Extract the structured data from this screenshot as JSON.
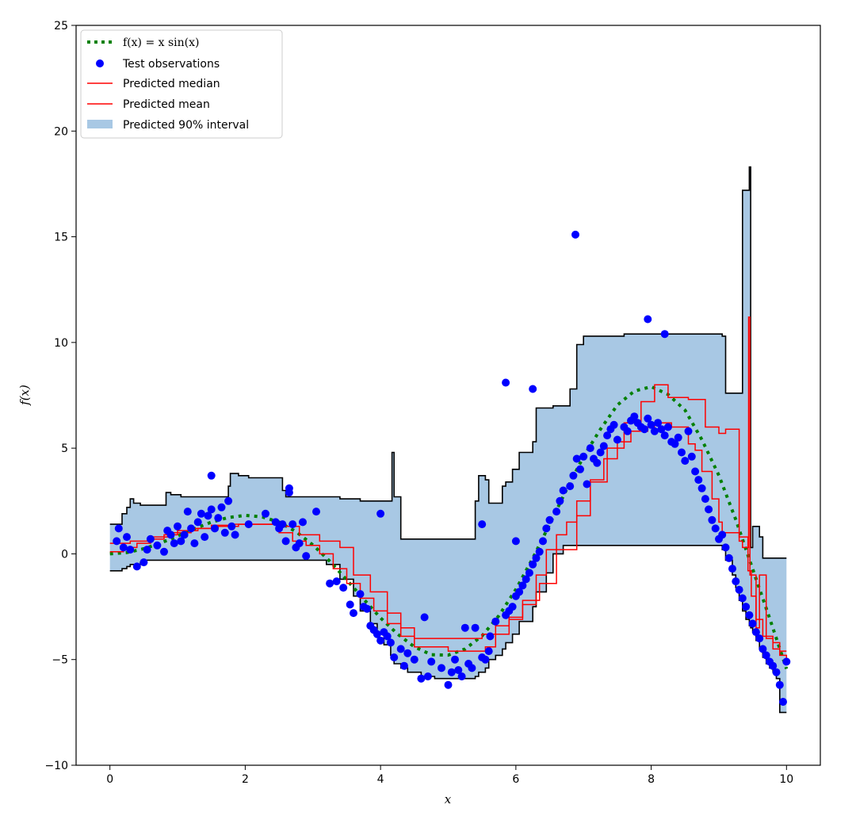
{
  "chart_data": {
    "type": "line",
    "title": "",
    "xlabel": "x",
    "ylabel": "f(x)",
    "xlim": [
      -0.5,
      10.5
    ],
    "ylim": [
      -10,
      25
    ],
    "x_ticks": [
      0,
      2,
      4,
      6,
      8,
      10
    ],
    "y_ticks": [
      -10,
      -5,
      0,
      5,
      10,
      15,
      20,
      25
    ],
    "x_tick_labels": [
      "0",
      "2",
      "4",
      "6",
      "8",
      "10"
    ],
    "y_tick_labels": [
      "−10",
      "−5",
      "0",
      "5",
      "10",
      "15",
      "20",
      "25"
    ],
    "grid": false,
    "legend_position": "top-left",
    "legend": [
      {
        "label": "f(x) = x sin(x)",
        "style": "dotted",
        "color": "#008000"
      },
      {
        "label": "Test observations",
        "style": "marker",
        "color": "#0000ff"
      },
      {
        "label": "Predicted median",
        "style": "line",
        "color": "#ff0000"
      },
      {
        "label": "Predicted mean",
        "style": "line",
        "color": "#ff0000"
      },
      {
        "label": "Predicted 90% interval",
        "style": "patch",
        "color": "#a8c8e4"
      }
    ],
    "interval_x": [
      0.0,
      0.18,
      0.25,
      0.3,
      0.35,
      0.45,
      0.5,
      0.65,
      0.8,
      0.83,
      0.9,
      1.05,
      1.2,
      1.4,
      1.6,
      1.75,
      1.78,
      1.9,
      2.05,
      2.2,
      2.4,
      2.5,
      2.55,
      2.6,
      2.8,
      3.0,
      3.2,
      3.4,
      3.6,
      3.7,
      3.85,
      3.95,
      4.05,
      4.15,
      4.17,
      4.2,
      4.3,
      4.4,
      4.6,
      4.8,
      5.0,
      5.3,
      5.4,
      5.45,
      5.55,
      5.6,
      5.7,
      5.8,
      5.85,
      5.95,
      6.05,
      6.25,
      6.3,
      6.45,
      6.55,
      6.7,
      6.8,
      6.9,
      7.0,
      7.2,
      7.4,
      7.6,
      7.8,
      8.0,
      8.2,
      8.4,
      8.6,
      8.8,
      9.0,
      9.05,
      9.1,
      9.2,
      9.25,
      9.3,
      9.35,
      9.4,
      9.45,
      9.47,
      9.5,
      9.55,
      9.6,
      9.65,
      9.7,
      9.75,
      9.8,
      9.85,
      9.9,
      9.95,
      10.0
    ],
    "interval_upper": [
      1.4,
      1.9,
      2.2,
      2.6,
      2.4,
      2.3,
      2.3,
      2.3,
      2.3,
      2.9,
      2.8,
      2.7,
      2.7,
      2.7,
      2.7,
      3.2,
      3.8,
      3.7,
      3.6,
      3.6,
      3.6,
      3.6,
      3.0,
      2.7,
      2.7,
      2.7,
      2.7,
      2.6,
      2.6,
      2.5,
      2.5,
      2.5,
      2.5,
      2.5,
      4.8,
      2.7,
      0.7,
      0.7,
      0.7,
      0.7,
      0.7,
      0.7,
      2.5,
      3.7,
      3.5,
      2.4,
      2.4,
      3.2,
      3.4,
      4.0,
      4.8,
      5.3,
      6.9,
      6.9,
      7.0,
      7.0,
      7.8,
      9.9,
      10.3,
      10.3,
      10.3,
      10.4,
      10.4,
      10.4,
      10.4,
      10.4,
      10.4,
      10.4,
      10.4,
      10.3,
      7.6,
      7.6,
      7.6,
      7.6,
      17.2,
      17.2,
      18.3,
      0.3,
      1.3,
      1.3,
      0.8,
      -0.2,
      -0.2,
      -0.2,
      -0.2,
      -0.2,
      -0.2,
      -0.2,
      -0.2
    ],
    "interval_lower": [
      -0.8,
      -0.7,
      -0.6,
      -0.5,
      -0.5,
      -0.4,
      -0.3,
      -0.3,
      -0.3,
      -0.3,
      -0.3,
      -0.3,
      -0.3,
      -0.3,
      -0.3,
      -0.3,
      -0.3,
      -0.3,
      -0.3,
      -0.3,
      -0.3,
      -0.3,
      -0.3,
      -0.3,
      -0.3,
      -0.3,
      -0.5,
      -1.2,
      -2.0,
      -2.7,
      -3.3,
      -3.8,
      -4.3,
      -4.8,
      -5.0,
      -5.2,
      -5.4,
      -5.6,
      -5.8,
      -5.9,
      -5.9,
      -5.9,
      -5.8,
      -5.6,
      -5.4,
      -5.0,
      -4.8,
      -4.5,
      -4.2,
      -3.8,
      -3.2,
      -2.5,
      -1.8,
      -0.9,
      0.0,
      0.4,
      0.4,
      0.4,
      0.4,
      0.4,
      0.4,
      0.4,
      0.4,
      0.4,
      0.4,
      0.4,
      0.4,
      0.4,
      0.4,
      0.2,
      -0.3,
      -1.0,
      -1.6,
      -2.2,
      -2.7,
      -3.1,
      -3.4,
      -3.5,
      -3.7,
      -4.1,
      -4.5,
      -4.9,
      -5.2,
      -5.4,
      -5.6,
      -5.9,
      -7.5,
      -7.5,
      -7.5
    ],
    "function_x": [
      0,
      0.25,
      0.5,
      0.75,
      1.0,
      1.25,
      1.5,
      1.75,
      2.0,
      2.25,
      2.5,
      2.75,
      3.0,
      3.25,
      3.5,
      3.75,
      4.0,
      4.25,
      4.5,
      4.75,
      5.0,
      5.25,
      5.5,
      5.75,
      6.0,
      6.25,
      6.5,
      6.75,
      7.0,
      7.25,
      7.5,
      7.75,
      8.0,
      8.25,
      8.5,
      8.75,
      9.0,
      9.25,
      9.5,
      9.75,
      10.0
    ],
    "function_y": [
      0.0,
      0.06,
      0.24,
      0.51,
      0.84,
      1.19,
      1.5,
      1.72,
      1.82,
      1.75,
      1.5,
      1.05,
      0.42,
      -0.35,
      -1.23,
      -2.14,
      -3.03,
      -3.79,
      -4.4,
      -4.77,
      -4.79,
      -4.5,
      -3.88,
      -2.92,
      -1.68,
      -0.21,
      1.4,
      3.05,
      4.6,
      5.9,
      7.04,
      7.7,
      7.91,
      7.54,
      6.8,
      5.4,
      3.71,
      1.62,
      -0.71,
      -3.04,
      -5.44
    ],
    "median_x": [
      0.0,
      0.2,
      0.4,
      0.6,
      0.8,
      1.0,
      1.3,
      1.6,
      1.9,
      2.2,
      2.5,
      2.7,
      2.9,
      3.1,
      3.3,
      3.5,
      3.7,
      3.9,
      4.1,
      4.3,
      4.5,
      5.0,
      5.4,
      5.55,
      5.7,
      5.9,
      6.1,
      6.3,
      6.45,
      6.6,
      6.75,
      6.9,
      7.1,
      7.3,
      7.5,
      7.7,
      7.95,
      8.05,
      8.3,
      8.55,
      8.65,
      8.75,
      8.9,
      9.0,
      9.05,
      9.3,
      9.35,
      9.44,
      9.46,
      9.55,
      9.6,
      9.7,
      9.8,
      9.9,
      10.0
    ],
    "median_y": [
      0.1,
      0.3,
      0.5,
      0.7,
      0.9,
      1.1,
      1.2,
      1.3,
      1.4,
      1.4,
      1.0,
      0.6,
      0.4,
      0.0,
      -0.7,
      -1.4,
      -2.1,
      -2.7,
      -3.3,
      -3.9,
      -4.4,
      -4.6,
      -4.6,
      -4.4,
      -3.8,
      -3.1,
      -2.4,
      -1.0,
      0.2,
      0.9,
      1.5,
      2.5,
      3.5,
      4.5,
      5.3,
      5.8,
      6.0,
      6.2,
      6.0,
      5.2,
      4.9,
      3.9,
      2.6,
      1.5,
      1.0,
      0.6,
      0.3,
      11.2,
      -1.0,
      -3.5,
      -1.0,
      -4.0,
      -4.5,
      -4.8,
      -5.2
    ],
    "mean_x": [
      0.0,
      0.3,
      0.6,
      0.9,
      1.2,
      1.5,
      1.8,
      2.1,
      2.4,
      2.6,
      2.8,
      3.1,
      3.4,
      3.6,
      3.85,
      4.1,
      4.3,
      4.5,
      4.8,
      5.2,
      5.5,
      5.7,
      5.9,
      6.1,
      6.35,
      6.6,
      6.9,
      7.1,
      7.35,
      7.6,
      7.85,
      8.05,
      8.25,
      8.55,
      8.8,
      9.0,
      9.1,
      9.3,
      9.43,
      9.48,
      9.55,
      9.65,
      9.8,
      9.9,
      10.0
    ],
    "mean_y": [
      0.5,
      0.6,
      0.8,
      1.0,
      1.2,
      1.35,
      1.4,
      1.4,
      1.4,
      1.3,
      0.9,
      0.6,
      0.3,
      -1.0,
      -1.8,
      -2.8,
      -3.5,
      -4.0,
      -4.0,
      -4.0,
      -3.8,
      -3.4,
      -3.0,
      -2.2,
      -1.4,
      0.2,
      1.8,
      3.4,
      5.0,
      6.2,
      7.2,
      8.0,
      7.4,
      7.3,
      6.0,
      5.7,
      5.9,
      0.8,
      -0.8,
      -2.0,
      -3.1,
      -3.9,
      -4.2,
      -4.6,
      -4.6
    ],
    "observations_x": [
      0.1,
      0.13,
      0.2,
      0.25,
      0.3,
      0.4,
      0.5,
      0.55,
      0.6,
      0.7,
      0.8,
      0.85,
      0.9,
      0.95,
      1.0,
      1.05,
      1.1,
      1.15,
      1.2,
      1.25,
      1.3,
      1.35,
      1.4,
      1.45,
      1.5,
      1.55,
      1.6,
      1.65,
      1.7,
      1.75,
      1.8,
      1.85,
      2.05,
      2.3,
      2.45,
      2.5,
      2.55,
      2.6,
      2.65,
      2.7,
      2.75,
      2.8,
      2.85,
      2.9,
      3.25,
      3.35,
      3.45,
      3.55,
      3.6,
      3.7,
      3.75,
      3.8,
      3.85,
      3.9,
      3.95,
      4.0,
      4.05,
      4.1,
      4.15,
      4.2,
      4.3,
      4.35,
      4.4,
      4.5,
      4.6,
      4.65,
      4.7,
      4.75,
      4.9,
      5.0,
      5.05,
      5.1,
      5.15,
      5.2,
      5.25,
      5.3,
      5.35,
      5.4,
      5.5,
      5.55,
      5.6,
      5.62,
      5.7,
      5.85,
      5.9,
      5.95,
      6.0,
      6.05,
      6.1,
      6.15,
      6.2,
      6.25,
      6.3,
      6.35,
      6.4,
      6.45,
      6.5,
      6.6,
      6.65,
      6.7,
      6.8,
      6.85,
      6.9,
      6.95,
      7.0,
      7.05,
      7.1,
      7.15,
      7.2,
      7.25,
      7.3,
      7.35,
      7.4,
      7.45,
      7.5,
      7.6,
      7.65,
      7.7,
      7.75,
      7.8,
      7.85,
      7.9,
      7.95,
      8.0,
      8.05,
      8.1,
      8.15,
      8.2,
      8.25,
      8.3,
      8.35,
      8.4,
      8.45,
      8.5,
      8.55,
      8.6,
      8.65,
      8.7,
      8.75,
      8.8,
      8.85,
      8.9,
      8.95,
      9.0,
      9.05,
      9.1,
      9.15,
      9.2,
      9.25,
      9.3,
      9.35,
      9.4,
      9.45,
      9.5,
      9.55,
      9.6,
      9.65,
      9.7,
      9.75,
      9.8,
      9.85,
      9.9,
      9.95,
      10.0,
      4.0,
      6.88,
      7.95,
      8.2,
      6.25,
      1.5,
      2.65,
      5.85,
      5.5,
      3.05,
      6.0
    ],
    "observations_y": [
      0.6,
      1.2,
      0.3,
      0.8,
      0.2,
      -0.6,
      -0.4,
      0.2,
      0.7,
      0.4,
      0.1,
      1.1,
      0.9,
      0.5,
      1.3,
      0.6,
      0.9,
      2.0,
      1.2,
      0.5,
      1.5,
      1.9,
      0.8,
      1.8,
      2.1,
      1.2,
      1.7,
      2.2,
      1.0,
      2.5,
      1.3,
      0.9,
      1.4,
      1.9,
      1.5,
      1.2,
      1.4,
      0.6,
      2.9,
      1.4,
      0.3,
      0.5,
      1.5,
      -0.1,
      -1.4,
      -1.3,
      -1.6,
      -2.4,
      -2.8,
      -1.9,
      -2.5,
      -2.6,
      -3.4,
      -3.6,
      -3.8,
      -4.1,
      -3.7,
      -3.9,
      -4.2,
      -4.9,
      -4.5,
      -5.3,
      -4.7,
      -5.0,
      -5.9,
      -3.0,
      -5.8,
      -5.1,
      -5.4,
      -6.2,
      -5.6,
      -5.0,
      -5.5,
      -5.8,
      -3.5,
      -5.2,
      -5.4,
      -3.5,
      -4.9,
      -5.0,
      -4.6,
      -3.9,
      -3.2,
      -2.9,
      -2.7,
      -2.5,
      -2.0,
      -1.8,
      -1.5,
      -1.2,
      -0.9,
      -0.5,
      -0.2,
      0.1,
      0.6,
      1.2,
      1.6,
      2.0,
      2.5,
      3.0,
      3.2,
      3.7,
      4.5,
      4.0,
      4.6,
      3.3,
      5.0,
      4.5,
      4.3,
      4.8,
      5.1,
      5.6,
      5.9,
      6.1,
      5.4,
      6.0,
      5.8,
      6.3,
      6.5,
      6.2,
      6.0,
      5.9,
      6.4,
      6.1,
      5.8,
      6.2,
      5.9,
      5.6,
      6.0,
      5.3,
      5.2,
      5.5,
      4.8,
      4.4,
      5.8,
      4.6,
      3.9,
      3.5,
      3.1,
      2.6,
      2.1,
      1.6,
      1.2,
      0.7,
      0.9,
      0.3,
      -0.2,
      -0.7,
      -1.3,
      -1.7,
      -2.1,
      -2.5,
      -2.9,
      -3.3,
      -3.7,
      -4.0,
      -4.5,
      -4.8,
      -5.1,
      -5.3,
      -5.6,
      -6.2,
      -7.0,
      -5.1,
      1.9,
      15.1,
      11.1,
      10.4,
      7.8,
      3.7,
      3.1,
      8.1,
      1.4,
      2.0,
      0.6
    ]
  }
}
